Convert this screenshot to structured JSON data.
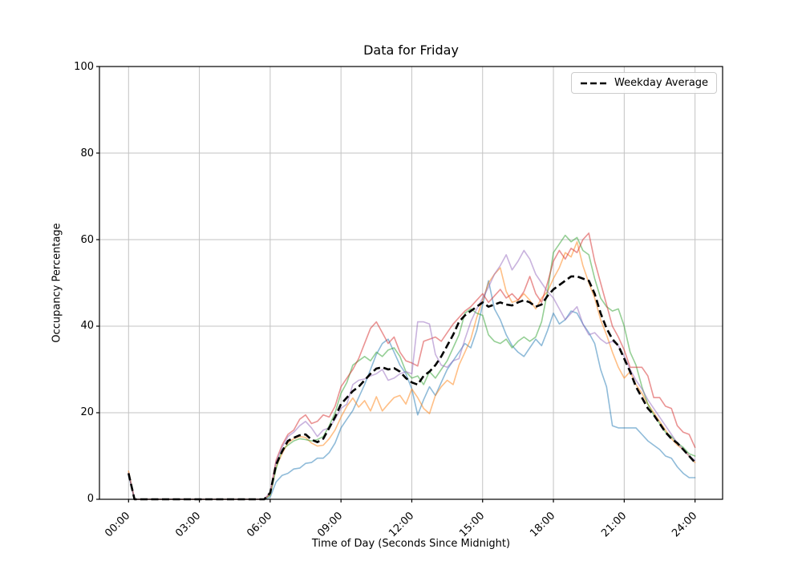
{
  "chart_data": {
    "type": "line",
    "title": "Data for Friday",
    "xlabel": "Time of Day (Seconds Since Midnight)",
    "ylabel": "Occupancy Percentage",
    "x_tick_labels": [
      "00:00",
      "03:00",
      "06:00",
      "09:00",
      "12:00",
      "15:00",
      "18:00",
      "21:00",
      "24:00"
    ],
    "x_tick_hours": [
      0,
      3,
      6,
      9,
      12,
      15,
      18,
      21,
      24
    ],
    "y_ticks": [
      0,
      20,
      40,
      60,
      80,
      100
    ],
    "ylim": [
      0,
      100
    ],
    "grid": true,
    "interval_minutes": 15,
    "start_time": "00:00",
    "legend": {
      "position": "upper right",
      "entries": [
        {
          "label": "Weekday Average",
          "color": "#000000",
          "dash": true
        }
      ]
    },
    "series": [
      {
        "name": "blue",
        "color": "#1f77b4",
        "opacity": 0.5,
        "values": [
          5.5,
          0,
          0,
          0,
          0,
          0,
          0,
          0,
          0,
          0,
          0,
          0,
          0,
          0,
          0,
          0,
          0,
          0,
          0,
          0,
          0,
          0,
          0,
          0,
          0.5,
          4,
          5.5,
          6,
          7,
          7.2,
          8.3,
          8.5,
          9.5,
          9.5,
          10.8,
          13,
          16.5,
          18.5,
          20.5,
          23.5,
          26.5,
          30,
          33.5,
          36,
          37,
          34,
          31,
          29,
          25.5,
          19.5,
          23,
          26,
          24,
          27,
          30,
          32,
          34,
          36,
          35,
          39,
          45,
          50.5,
          44,
          41.5,
          38,
          35.5,
          34,
          33,
          35,
          37,
          35.5,
          39,
          43,
          40.5,
          41.5,
          43.5,
          43,
          40.5,
          38.5,
          36,
          30,
          26,
          17,
          16.5,
          16.5,
          16.5,
          16.5,
          15,
          13.5,
          12.5,
          11.5,
          10,
          9.5,
          7.5,
          6,
          5,
          5
        ]
      },
      {
        "name": "orange",
        "color": "#ff7f0e",
        "opacity": 0.5,
        "values": [
          6.5,
          0,
          0,
          0,
          0,
          0,
          0,
          0,
          0,
          0,
          0,
          0,
          0,
          0,
          0,
          0,
          0,
          0,
          0,
          0,
          0,
          0,
          0,
          0,
          1,
          7.5,
          10.5,
          13,
          14,
          14.5,
          14.3,
          13,
          12.3,
          12.5,
          14,
          16,
          19,
          21.5,
          23.4,
          21.3,
          22.8,
          20.4,
          23.7,
          20.4,
          22,
          23.5,
          24,
          22,
          25.5,
          23.5,
          21,
          19.8,
          24,
          26,
          27.5,
          26.5,
          31,
          34,
          37,
          42,
          46,
          50,
          52,
          53.5,
          48,
          45.5,
          46,
          47.5,
          46,
          44,
          46.5,
          48,
          51,
          53.5,
          57,
          56,
          59.5,
          54,
          50,
          46.5,
          41.5,
          38,
          34,
          30.5,
          28,
          29.5,
          26.5,
          24.5,
          22,
          20,
          18,
          16,
          14,
          12.5,
          11.5,
          10,
          8.5
        ]
      },
      {
        "name": "green",
        "color": "#2ca02c",
        "opacity": 0.5,
        "values": [
          6,
          0,
          0,
          0,
          0,
          0,
          0,
          0,
          0,
          0,
          0,
          0,
          0,
          0,
          0,
          0,
          0,
          0,
          0,
          0,
          0,
          0,
          0,
          0,
          1,
          7,
          11.5,
          12.5,
          13.5,
          14,
          13.8,
          13.5,
          13.8,
          14.5,
          17,
          20,
          24.5,
          27,
          31,
          32,
          33,
          32,
          34,
          33,
          34.5,
          35,
          33,
          29.5,
          28,
          28.5,
          26.5,
          29.5,
          28,
          30,
          32,
          35,
          38,
          43,
          44,
          43,
          42.5,
          38,
          36.5,
          36,
          37,
          35,
          36.5,
          37.5,
          36.5,
          37.5,
          41,
          48,
          57,
          59,
          61,
          59.5,
          60.5,
          57.5,
          56.5,
          51,
          46.5,
          44.5,
          43.5,
          44,
          40,
          34,
          31,
          26,
          22,
          19.5,
          17.5,
          15.5,
          14.5,
          13,
          12,
          10.5,
          10
        ]
      },
      {
        "name": "red",
        "color": "#d62728",
        "opacity": 0.5,
        "values": [
          6,
          0,
          0,
          0,
          0,
          0,
          0,
          0,
          0,
          0,
          0,
          0,
          0,
          0,
          0,
          0,
          0,
          0,
          0,
          0,
          0,
          0,
          0,
          0,
          1.5,
          9,
          12.5,
          15,
          16,
          18.5,
          19.5,
          17.5,
          18,
          19.5,
          19,
          21.5,
          26,
          28,
          30,
          32.5,
          36,
          39.5,
          41,
          38.5,
          36,
          37.5,
          34,
          32,
          31.5,
          30.8,
          36.5,
          37,
          37.5,
          36.5,
          38.5,
          40.5,
          42,
          43.5,
          44.5,
          46,
          47.5,
          45.5,
          47,
          48.5,
          46.5,
          47.5,
          46,
          48,
          51.5,
          47.5,
          45.5,
          50,
          55,
          57.5,
          55.5,
          58,
          57,
          60,
          61.5,
          55,
          50,
          45,
          40,
          37.5,
          34.5,
          30.5,
          30.5,
          30.5,
          28.5,
          23.5,
          23.5,
          21.5,
          21,
          17,
          15.5,
          15,
          12
        ]
      },
      {
        "name": "purple",
        "color": "#9467bd",
        "opacity": 0.5,
        "values": [
          6,
          0,
          0,
          0,
          0,
          0,
          0,
          0,
          0,
          0,
          0,
          0,
          0,
          0,
          0,
          0,
          0,
          0,
          0,
          0,
          0,
          0,
          0,
          0,
          1.5,
          8.5,
          12,
          14.5,
          15.5,
          17,
          18,
          16.5,
          14.5,
          16,
          16.5,
          18.5,
          21,
          22,
          26.5,
          27.5,
          27.8,
          28.5,
          29,
          30,
          27.5,
          28,
          29,
          29.5,
          29,
          41,
          41,
          40.5,
          33.5,
          31,
          30.5,
          32,
          32.5,
          37,
          41,
          44,
          46.5,
          49,
          52,
          54,
          56.5,
          53,
          55,
          57.5,
          55.5,
          52,
          50,
          48,
          46.5,
          44,
          41.5,
          43,
          44.5,
          40.5,
          38,
          38.5,
          37,
          36,
          36.5,
          35.5,
          33,
          30,
          27.5,
          25.5,
          23,
          21,
          19,
          17,
          15,
          13,
          11.5,
          10,
          9
        ]
      }
    ],
    "average": {
      "name": "Weekday Average",
      "color": "#000000",
      "dash": true,
      "linewidth": 2.6,
      "values": [
        6,
        0,
        0,
        0,
        0,
        0,
        0,
        0,
        0,
        0,
        0,
        0,
        0,
        0,
        0,
        0,
        0,
        0,
        0,
        0,
        0,
        0,
        0,
        0,
        1.5,
        8,
        11,
        13.5,
        14.2,
        14.8,
        15,
        13.8,
        13.2,
        14,
        16.5,
        19,
        22,
        23.5,
        25,
        26,
        27.5,
        29,
        30.2,
        30.5,
        30,
        30.3,
        29.5,
        28,
        27,
        26.5,
        28.5,
        29.5,
        31,
        33,
        35.5,
        38,
        41,
        42.5,
        43.5,
        44.5,
        45.5,
        44.5,
        45,
        45.5,
        45,
        44.8,
        45.5,
        46,
        45.5,
        44.5,
        45,
        47,
        48.5,
        49.5,
        50.5,
        51.5,
        51.5,
        51,
        50.5,
        47.5,
        43,
        39.5,
        37,
        35.5,
        32.5,
        29.5,
        26,
        23.5,
        21,
        19.5,
        17.5,
        15.5,
        14,
        13,
        11.5,
        10,
        8.5
      ]
    }
  }
}
